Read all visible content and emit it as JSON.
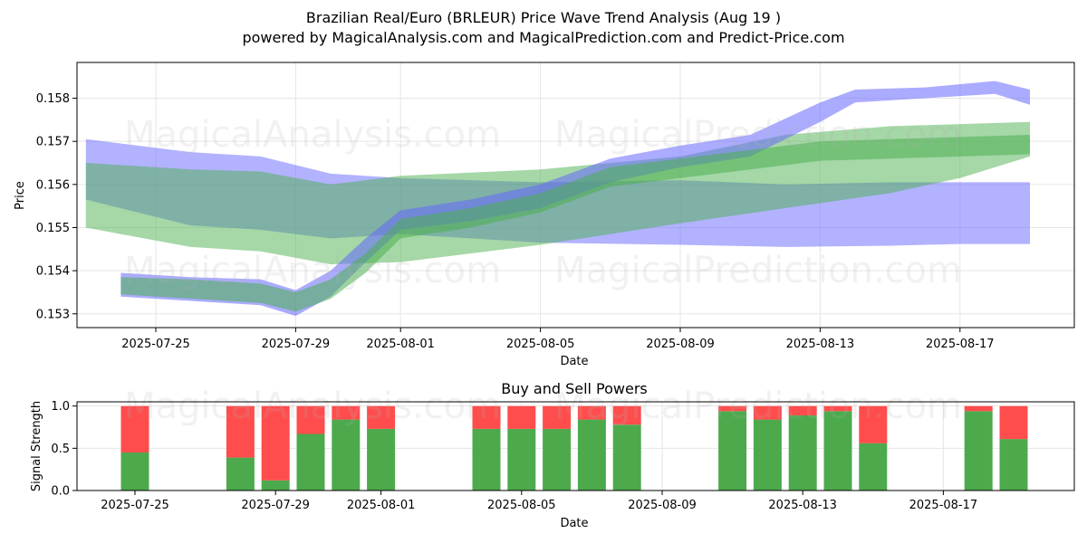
{
  "title_line1": "Brazilian Real/Euro (BRLEUR) Price Wave Trend Analysis (Aug 19 )",
  "title_line2": "powered by MagicalAnalysis.com and MagicalPrediction.com and Predict-Price.com",
  "watermarks": [
    "MagicalAnalysis.com",
    "MagicalPrediction.com"
  ],
  "colors": {
    "blue_band": "#6666ff",
    "green_band": "#4caf50",
    "buy": "#4caa4c",
    "sell": "#ff4d4d",
    "grid": "#e6e6e6"
  },
  "chart_data": [
    {
      "type": "area",
      "title": "",
      "xlabel": "Date",
      "ylabel": "Price",
      "x_ticks": [
        "2025-07-25",
        "2025-07-29",
        "2025-08-01",
        "2025-08-05",
        "2025-08-09",
        "2025-08-13",
        "2025-08-17"
      ],
      "y_ticks": [
        "0.153",
        "0.154",
        "0.155",
        "0.156",
        "0.157",
        "0.158"
      ],
      "ylim": [
        0.15268,
        0.15883
      ],
      "xlim": [
        "2025-07-22",
        "2025-08-20"
      ],
      "grid": true,
      "series": [
        {
          "color": "blue",
          "x": [
            "2025-07-23",
            "2025-07-26",
            "2025-07-28",
            "2025-07-30",
            "2025-08-01",
            "2025-08-05",
            "2025-08-09",
            "2025-08-12",
            "2025-08-15",
            "2025-08-17",
            "2025-08-19"
          ],
          "upper": [
            0.15705,
            0.15675,
            0.15665,
            0.15625,
            0.15615,
            0.15605,
            0.1561,
            0.156,
            0.15605,
            0.15605,
            0.15605
          ],
          "lower": [
            0.15565,
            0.15505,
            0.15495,
            0.15475,
            0.15485,
            0.15465,
            0.1546,
            0.15455,
            0.15458,
            0.15462,
            0.15462
          ]
        },
        {
          "color": "green",
          "x": [
            "2025-07-23",
            "2025-07-26",
            "2025-07-28",
            "2025-07-30",
            "2025-08-01",
            "2025-08-05",
            "2025-08-09",
            "2025-08-12",
            "2025-08-15",
            "2025-08-17",
            "2025-08-19"
          ],
          "upper": [
            0.1565,
            0.15635,
            0.1563,
            0.156,
            0.1562,
            0.15635,
            0.15665,
            0.15715,
            0.15735,
            0.1574,
            0.15745
          ],
          "lower": [
            0.155,
            0.15455,
            0.15445,
            0.15415,
            0.1542,
            0.1546,
            0.1551,
            0.15545,
            0.1558,
            0.15615,
            0.15665
          ]
        },
        {
          "color": "blue",
          "x": [
            "2025-07-24",
            "2025-07-26",
            "2025-07-28",
            "2025-07-29",
            "2025-07-30",
            "2025-07-31",
            "2025-08-01",
            "2025-08-03",
            "2025-08-05",
            "2025-08-07",
            "2025-08-09",
            "2025-08-11",
            "2025-08-13",
            "2025-08-14",
            "2025-08-16",
            "2025-08-18",
            "2025-08-19"
          ],
          "upper": [
            0.15395,
            0.15385,
            0.1538,
            0.15355,
            0.154,
            0.15475,
            0.1554,
            0.15565,
            0.156,
            0.1566,
            0.1569,
            0.15715,
            0.1579,
            0.1582,
            0.15825,
            0.1584,
            0.1582
          ],
          "lower": [
            0.1534,
            0.1533,
            0.1532,
            0.15295,
            0.1534,
            0.1542,
            0.15495,
            0.15515,
            0.15545,
            0.15605,
            0.1564,
            0.15665,
            0.15745,
            0.1579,
            0.158,
            0.1581,
            0.15785
          ]
        },
        {
          "color": "green",
          "x": [
            "2025-07-24",
            "2025-07-26",
            "2025-07-28",
            "2025-07-29",
            "2025-07-30",
            "2025-07-31",
            "2025-08-01",
            "2025-08-03",
            "2025-08-05",
            "2025-08-07",
            "2025-08-09",
            "2025-08-11",
            "2025-08-13",
            "2025-08-15",
            "2025-08-17",
            "2025-08-19"
          ],
          "upper": [
            0.15385,
            0.1538,
            0.1537,
            0.1535,
            0.1538,
            0.1544,
            0.1552,
            0.15545,
            0.1558,
            0.1564,
            0.1566,
            0.1568,
            0.157,
            0.15705,
            0.1571,
            0.15715
          ],
          "lower": [
            0.15345,
            0.15335,
            0.15325,
            0.15305,
            0.15335,
            0.15395,
            0.15475,
            0.155,
            0.15535,
            0.15595,
            0.15615,
            0.15635,
            0.15655,
            0.1566,
            0.15665,
            0.1567
          ]
        }
      ]
    },
    {
      "type": "bar",
      "title": "Buy and Sell Powers",
      "xlabel": "Date",
      "ylabel": "Signal Strength",
      "x_ticks": [
        "2025-07-25",
        "2025-07-29",
        "2025-08-01",
        "2025-08-05",
        "2025-08-09",
        "2025-08-13",
        "2025-08-17"
      ],
      "y_ticks": [
        "0.0",
        "0.5",
        "1.0"
      ],
      "ylim": [
        0,
        1.05
      ],
      "categories": [
        "2025-07-25",
        "2025-07-28",
        "2025-07-29",
        "2025-07-30",
        "2025-07-31",
        "2025-08-01",
        "2025-08-04",
        "2025-08-05",
        "2025-08-06",
        "2025-08-07",
        "2025-08-08",
        "2025-08-11",
        "2025-08-12",
        "2025-08-13",
        "2025-08-14",
        "2025-08-15",
        "2025-08-18",
        "2025-08-19"
      ],
      "series": [
        {
          "color": "green",
          "values": [
            0.45,
            0.39,
            0.12,
            0.67,
            0.84,
            0.73,
            0.73,
            0.73,
            0.73,
            0.84,
            0.78,
            0.94,
            0.84,
            0.89,
            0.94,
            0.56,
            0.94,
            0.61
          ]
        },
        {
          "color": "red",
          "values": [
            0.55,
            0.61,
            0.88,
            0.33,
            0.16,
            0.27,
            0.27,
            0.27,
            0.27,
            0.16,
            0.22,
            0.06,
            0.16,
            0.11,
            0.06,
            0.44,
            0.06,
            0.39
          ]
        }
      ]
    }
  ]
}
